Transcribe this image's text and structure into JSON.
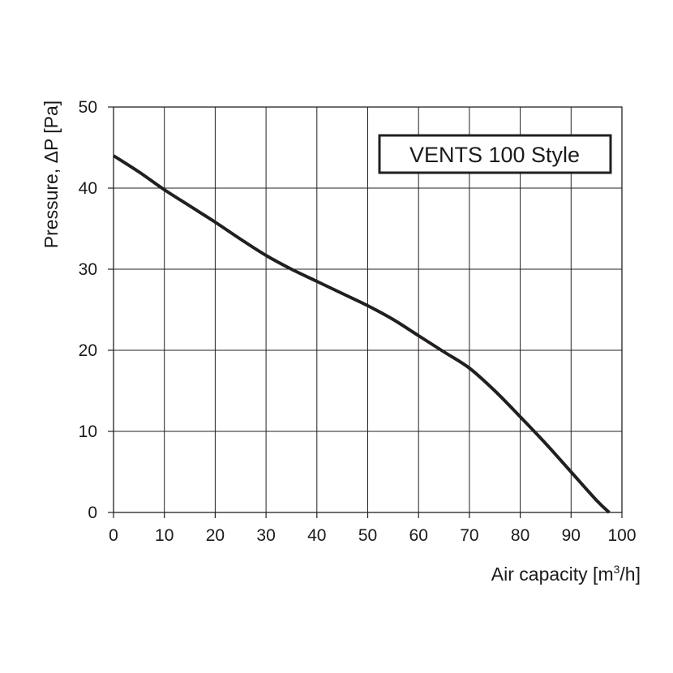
{
  "chart_data": {
    "type": "line",
    "title": "",
    "xlabel": "Air capacity [m",
    "xlabel_sup": "3",
    "xlabel_tail": "/h]",
    "ylabel": "Pressure, ΔP [Pa]",
    "xlim": [
      0,
      100
    ],
    "ylim": [
      0,
      50
    ],
    "x_ticks": [
      0,
      10,
      20,
      30,
      40,
      50,
      60,
      70,
      80,
      90,
      100
    ],
    "y_ticks": [
      0,
      10,
      20,
      30,
      40,
      50
    ],
    "x_tick_labels": [
      "0",
      "10",
      "20",
      "30",
      "40",
      "50",
      "60",
      "70",
      "80",
      "90",
      "100"
    ],
    "y_tick_labels": [
      "0",
      "10",
      "20",
      "30",
      "40",
      "50"
    ],
    "grid": true,
    "legend_position": "top-right",
    "series": [
      {
        "name": "VENTS 100 Style",
        "color": "#231f20",
        "x": [
          0,
          5,
          10,
          15,
          20,
          25,
          30,
          35,
          40,
          45,
          50,
          55,
          60,
          65,
          70,
          75,
          80,
          85,
          90,
          95,
          97.5
        ],
        "y": [
          44,
          42,
          39.8,
          37.8,
          35.8,
          33.7,
          31.7,
          30,
          28.5,
          27,
          25.5,
          23.8,
          21.8,
          19.8,
          17.8,
          15,
          11.8,
          8.5,
          5,
          1.5,
          0
        ]
      }
    ]
  }
}
